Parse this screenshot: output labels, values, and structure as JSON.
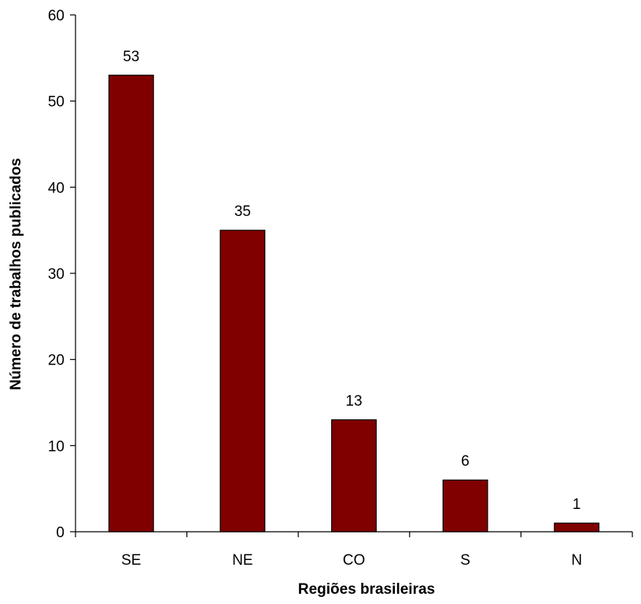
{
  "chart_data": {
    "type": "bar",
    "categories": [
      "SE",
      "NE",
      "CO",
      "S",
      "N"
    ],
    "values": [
      53,
      35,
      13,
      6,
      1
    ],
    "data_labels": [
      "53",
      "35",
      "13",
      "6",
      "1"
    ],
    "xlabel": "Regiões brasileiras",
    "ylabel": "Número de trabalhos publicados",
    "ylim": [
      0,
      60
    ],
    "yticks": [
      0,
      10,
      20,
      30,
      40,
      50,
      60
    ],
    "ytick_labels": [
      "0",
      "10",
      "20",
      "30",
      "40",
      "50",
      "60"
    ],
    "grid": false,
    "legend": "none",
    "bar_color": "#800000"
  }
}
